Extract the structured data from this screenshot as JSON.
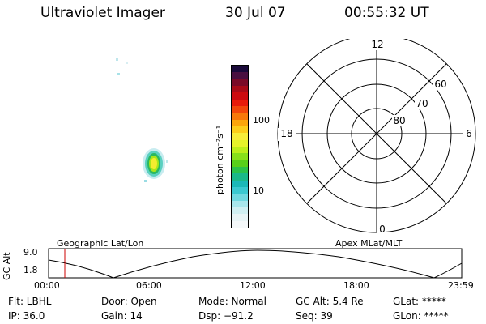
{
  "header": {
    "title": "Ultraviolet Imager",
    "date": "30 Jul 07",
    "time": "00:55:32 UT"
  },
  "colorbar": {
    "label": "photon cm⁻²s⁻¹",
    "ticks": [
      "100",
      "10"
    ],
    "colors": [
      "#1a0a3a",
      "#4a1040",
      "#7a0a28",
      "#a80a18",
      "#cc0a10",
      "#e81a0a",
      "#f2460a",
      "#f7780a",
      "#fba50a",
      "#fccd1a",
      "#f7ec3a",
      "#e6f22a",
      "#bcee1a",
      "#88e01a",
      "#58d01a",
      "#2ac24a",
      "#1ab88a",
      "#1ab8b8",
      "#3ac8d0",
      "#70d8e0",
      "#a8e6ec",
      "#d0eff2",
      "#e8f4f6",
      "#f4f8fa"
    ]
  },
  "polar": {
    "mlt_labels": {
      "top": "12",
      "left": "18",
      "right": "6",
      "bottom": "0"
    },
    "lat_labels": [
      "60",
      "70",
      "80"
    ]
  },
  "orbit": {
    "left_title": "Geographic Lat/Lon",
    "right_title": "Apex MLat/MLT",
    "axis_label": "GC Alt",
    "y_ticks": [
      "9.0",
      "1.8"
    ],
    "x_ticks": [
      "00:00",
      "06:00",
      "12:00",
      "18:00",
      "23:59"
    ],
    "marker_color": "#cc0000"
  },
  "info": {
    "filter": "Flt: LBHL",
    "ip": "IP: 36.0",
    "door": "Door: Open",
    "gain": "Gain: 14",
    "mode": "Mode: Normal",
    "dsp": "Dsp:  −91.2",
    "gc_alt": "GC Alt: 5.4 Re",
    "seq": "Seq: 39",
    "glat": "GLat: *****",
    "glon": "GLon: *****"
  }
}
